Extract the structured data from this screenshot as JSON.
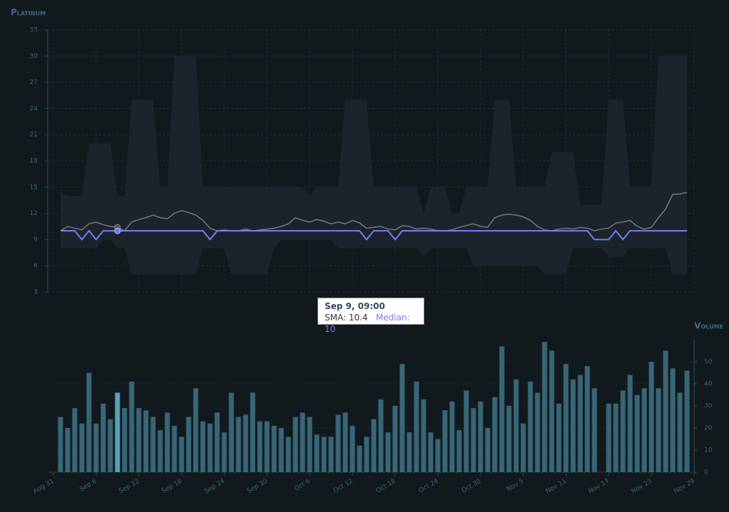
{
  "chart_data": {
    "type": "price-volume",
    "title": "Platinum",
    "y2_title": "Volume",
    "x": [
      "Sep 1",
      "Sep 2",
      "Sep 3",
      "Sep 4",
      "Sep 5",
      "Sep 6",
      "Sep 7",
      "Sep 8",
      "Sep 9",
      "Sep 10",
      "Sep 11",
      "Sep 12",
      "Sep 13",
      "Sep 14",
      "Sep 15",
      "Sep 16",
      "Sep 17",
      "Sep 18",
      "Sep 19",
      "Sep 20",
      "Sep 21",
      "Sep 22",
      "Sep 23",
      "Sep 24",
      "Sep 25",
      "Sep 26",
      "Sep 27",
      "Sep 28",
      "Sep 29",
      "Sep 30",
      "Oct 1",
      "Oct 2",
      "Oct 3",
      "Oct 4",
      "Oct 5",
      "Oct 6",
      "Oct 7",
      "Oct 8",
      "Oct 9",
      "Oct 10",
      "Oct 11",
      "Oct 12",
      "Oct 13",
      "Oct 14",
      "Oct 15",
      "Oct 16",
      "Oct 17",
      "Oct 18",
      "Oct 19",
      "Oct 20",
      "Oct 21",
      "Oct 22",
      "Oct 23",
      "Oct 24",
      "Oct 25",
      "Oct 26",
      "Oct 27",
      "Oct 28",
      "Oct 29",
      "Oct 30",
      "Oct 31",
      "Nov 1",
      "Nov 2",
      "Nov 3",
      "Nov 4",
      "Nov 5",
      "Nov 6",
      "Nov 7",
      "Nov 8",
      "Nov 9",
      "Nov 10",
      "Nov 11",
      "Nov 12",
      "Nov 13",
      "Nov 14",
      "Nov 15",
      "Nov 16",
      "Nov 17",
      "Nov 18",
      "Nov 19",
      "Nov 20",
      "Nov 21",
      "Nov 22",
      "Nov 23",
      "Nov 24",
      "Nov 25",
      "Nov 26",
      "Nov 27",
      "Nov 28"
    ],
    "xticks": [
      "Aug 31",
      "Sep 6",
      "Sep 12",
      "Sep 18",
      "Sep 24",
      "Sep 30",
      "Oct 6",
      "Oct 12",
      "Oct 18",
      "Oct 24",
      "Oct 30",
      "Nov 5",
      "Nov 11",
      "Nov 17",
      "Nov 23",
      "Nov 29"
    ],
    "ylim": [
      3,
      33
    ],
    "yticks": [
      3,
      6,
      9,
      12,
      15,
      18,
      21,
      24,
      27,
      30,
      33
    ],
    "y2lim": [
      0,
      60
    ],
    "y2ticks": [
      0,
      10,
      20,
      30,
      40,
      50
    ],
    "band_color": "#1a242a",
    "median_color": "#6f80f5",
    "sma_color": "#74797b",
    "volume_color": "#386677",
    "highlight_color": "#5a9fb6",
    "band_max": [
      14.5,
      14,
      14,
      14,
      20,
      20,
      20,
      20,
      14,
      14,
      25,
      25,
      25,
      25,
      15,
      15,
      30,
      30,
      30,
      30,
      15,
      15,
      15,
      15,
      15,
      15,
      15,
      15,
      15,
      15,
      15,
      15,
      15,
      15,
      15,
      14,
      15,
      15,
      15,
      15,
      25,
      25,
      25,
      25,
      15,
      15,
      15,
      15,
      15,
      15,
      15,
      12,
      15,
      15,
      15,
      12,
      12,
      15,
      15,
      15,
      15,
      25,
      25,
      25,
      15,
      15,
      15,
      15,
      15,
      19,
      19,
      19,
      19,
      13,
      13,
      13,
      13,
      25,
      25,
      25,
      15,
      15,
      15,
      15,
      30,
      30,
      30,
      30,
      30
    ],
    "band_min": [
      8,
      8,
      8,
      8,
      8,
      8,
      9,
      9,
      8,
      8,
      5,
      5,
      5,
      5,
      5,
      5,
      5,
      5,
      5,
      5,
      8,
      8,
      8,
      8,
      5,
      5,
      5,
      5,
      5,
      5,
      8,
      9,
      9,
      9,
      9,
      9,
      9,
      9,
      9,
      8,
      8,
      8,
      8,
      8,
      8,
      8,
      8,
      8,
      8,
      8,
      8,
      7,
      8,
      8,
      8,
      8,
      8,
      8,
      6,
      6,
      6,
      6,
      6,
      6,
      6,
      6,
      6,
      6,
      5,
      5,
      5,
      5,
      8,
      8,
      8,
      8,
      8,
      7,
      7,
      7,
      8,
      8,
      8,
      8,
      8,
      8,
      5,
      5,
      5
    ],
    "median": [
      10,
      10,
      10,
      9,
      10,
      9,
      10,
      10,
      10,
      10,
      10,
      10,
      10,
      10,
      10,
      10,
      10,
      10,
      10,
      10,
      10,
      9,
      10,
      10,
      10,
      10,
      10,
      10,
      10,
      10,
      10,
      10,
      10,
      10,
      10,
      10,
      10,
      10,
      10,
      10,
      10,
      10,
      10,
      9,
      10,
      10,
      10,
      9,
      10,
      10,
      10,
      10,
      10,
      10,
      10,
      10,
      10,
      10,
      10,
      10,
      10,
      10,
      10,
      10,
      10,
      10,
      10,
      10,
      10,
      10,
      10,
      10,
      10,
      10,
      10,
      9,
      9,
      9,
      10,
      9,
      10,
      10,
      10,
      10,
      10,
      10,
      10,
      10,
      10
    ],
    "sma": [
      10,
      10.5,
      10.3,
      10.1,
      10.8,
      11,
      10.7,
      10.5,
      10.4,
      10,
      11,
      11.3,
      11.5,
      11.8,
      11.5,
      11.4,
      12,
      12.3,
      12.1,
      11.8,
      11.2,
      10.3,
      10,
      10.1,
      10,
      10,
      10.2,
      10,
      10.1,
      10.2,
      10.3,
      10.5,
      10.8,
      11.5,
      11.2,
      11,
      11.3,
      11.1,
      10.8,
      11,
      10.8,
      11.2,
      10.9,
      10.3,
      10.4,
      10.5,
      10.2,
      10.1,
      10.6,
      10.5,
      10.2,
      10.3,
      10.2,
      10,
      10,
      10.1,
      10.4,
      10.6,
      10.8,
      10.5,
      10.4,
      11.5,
      11.8,
      11.9,
      11.8,
      11.6,
      11.2,
      10.5,
      10.1,
      10,
      10.2,
      10.3,
      10.2,
      10.4,
      10.3,
      10,
      10.2,
      10.3,
      10.9,
      11,
      11.2,
      10.5,
      10.2,
      10.4,
      11.5,
      12.5,
      14.2,
      14.2,
      14.4
    ],
    "volume": [
      25,
      20,
      29,
      22,
      45,
      22,
      31,
      24,
      36,
      29,
      41,
      29,
      28,
      25,
      19,
      27,
      21,
      16,
      25,
      38,
      23,
      22,
      27,
      18,
      36,
      25,
      26,
      36,
      23,
      23,
      21,
      20,
      16,
      25,
      27,
      25,
      17,
      16,
      16,
      26,
      27,
      21,
      12,
      16,
      24,
      33,
      18,
      30,
      49,
      18,
      41,
      33,
      18,
      15,
      28,
      32,
      19,
      37,
      29,
      32,
      20,
      34,
      57,
      30,
      42,
      22,
      41,
      36,
      59,
      55,
      31,
      49,
      42,
      44,
      48,
      38,
      null,
      31,
      31,
      37,
      44,
      35,
      38,
      50,
      38,
      55,
      47,
      36,
      46
    ],
    "tooltip": {
      "title": "Sep 9, 09:00",
      "labels": [
        "SMA:",
        "Median:"
      ]
    }
  }
}
